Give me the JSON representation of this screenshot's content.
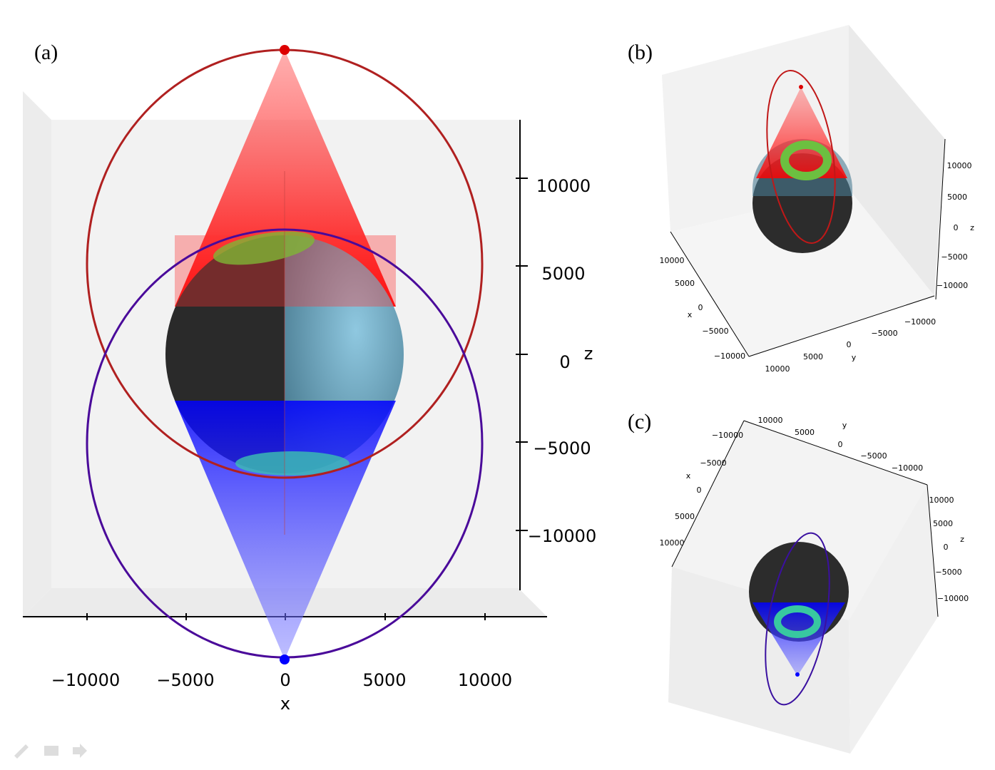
{
  "panels": [
    {
      "label": "(a)",
      "axes": {
        "x": {
          "title": "x",
          "ticks": [
            "−10000",
            "−5000",
            "0",
            "5000",
            "10000"
          ]
        },
        "z": {
          "title": "z",
          "ticks": [
            "10000",
            "5000",
            "0",
            "−5000",
            "−10000"
          ]
        }
      }
    },
    {
      "label": "(b)",
      "axes": {
        "x": {
          "title": "x",
          "ticks": [
            "10000",
            "5000",
            "0",
            "−5000",
            "−10000"
          ]
        },
        "y": {
          "title": "y",
          "ticks": [
            "10000",
            "5000",
            "0",
            "−5000",
            "−10000"
          ]
        },
        "z": {
          "title": "z",
          "ticks": [
            "10000",
            "5000",
            "0",
            "−5000",
            "−10000"
          ]
        }
      }
    },
    {
      "label": "(c)",
      "axes": {
        "x": {
          "title": "x",
          "ticks": [
            "−10000",
            "−5000",
            "0",
            "5000",
            "10000"
          ]
        },
        "y": {
          "title": "y",
          "ticks": [
            "10000",
            "5000",
            "0",
            "−5000",
            "−10000"
          ]
        },
        "z": {
          "title": "z",
          "ticks": [
            "10000",
            "5000",
            "0",
            "−5000",
            "−10000"
          ]
        }
      }
    }
  ]
}
